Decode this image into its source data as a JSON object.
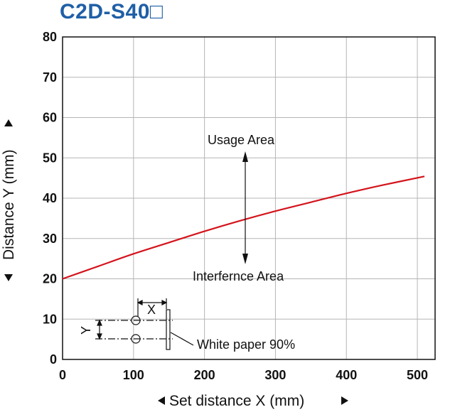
{
  "chart_data": {
    "type": "line",
    "title": "C2D-S40□",
    "xlabel": "Set distance X (mm)",
    "ylabel": "Distance Y (mm)",
    "xlim": [
      0,
      525
    ],
    "ylim": [
      0,
      80
    ],
    "xticks": [
      0,
      100,
      200,
      300,
      400,
      500
    ],
    "yticks": [
      0,
      10,
      20,
      30,
      40,
      50,
      60,
      70,
      80
    ],
    "grid": true,
    "series": [
      {
        "color": "#d4141c",
        "x": [
          0,
          50,
          100,
          150,
          200,
          250,
          300,
          350,
          400,
          450,
          510
        ],
        "y": [
          20,
          23.1,
          26.2,
          29.0,
          31.8,
          34.4,
          36.8,
          39.0,
          41.2,
          43.2,
          45.4
        ]
      }
    ],
    "annotations": {
      "upper": "Usage Area",
      "lower": "Interfernce Area",
      "inset_x": "X",
      "inset_y": "Y",
      "inset_note": "White paper 90%"
    }
  }
}
